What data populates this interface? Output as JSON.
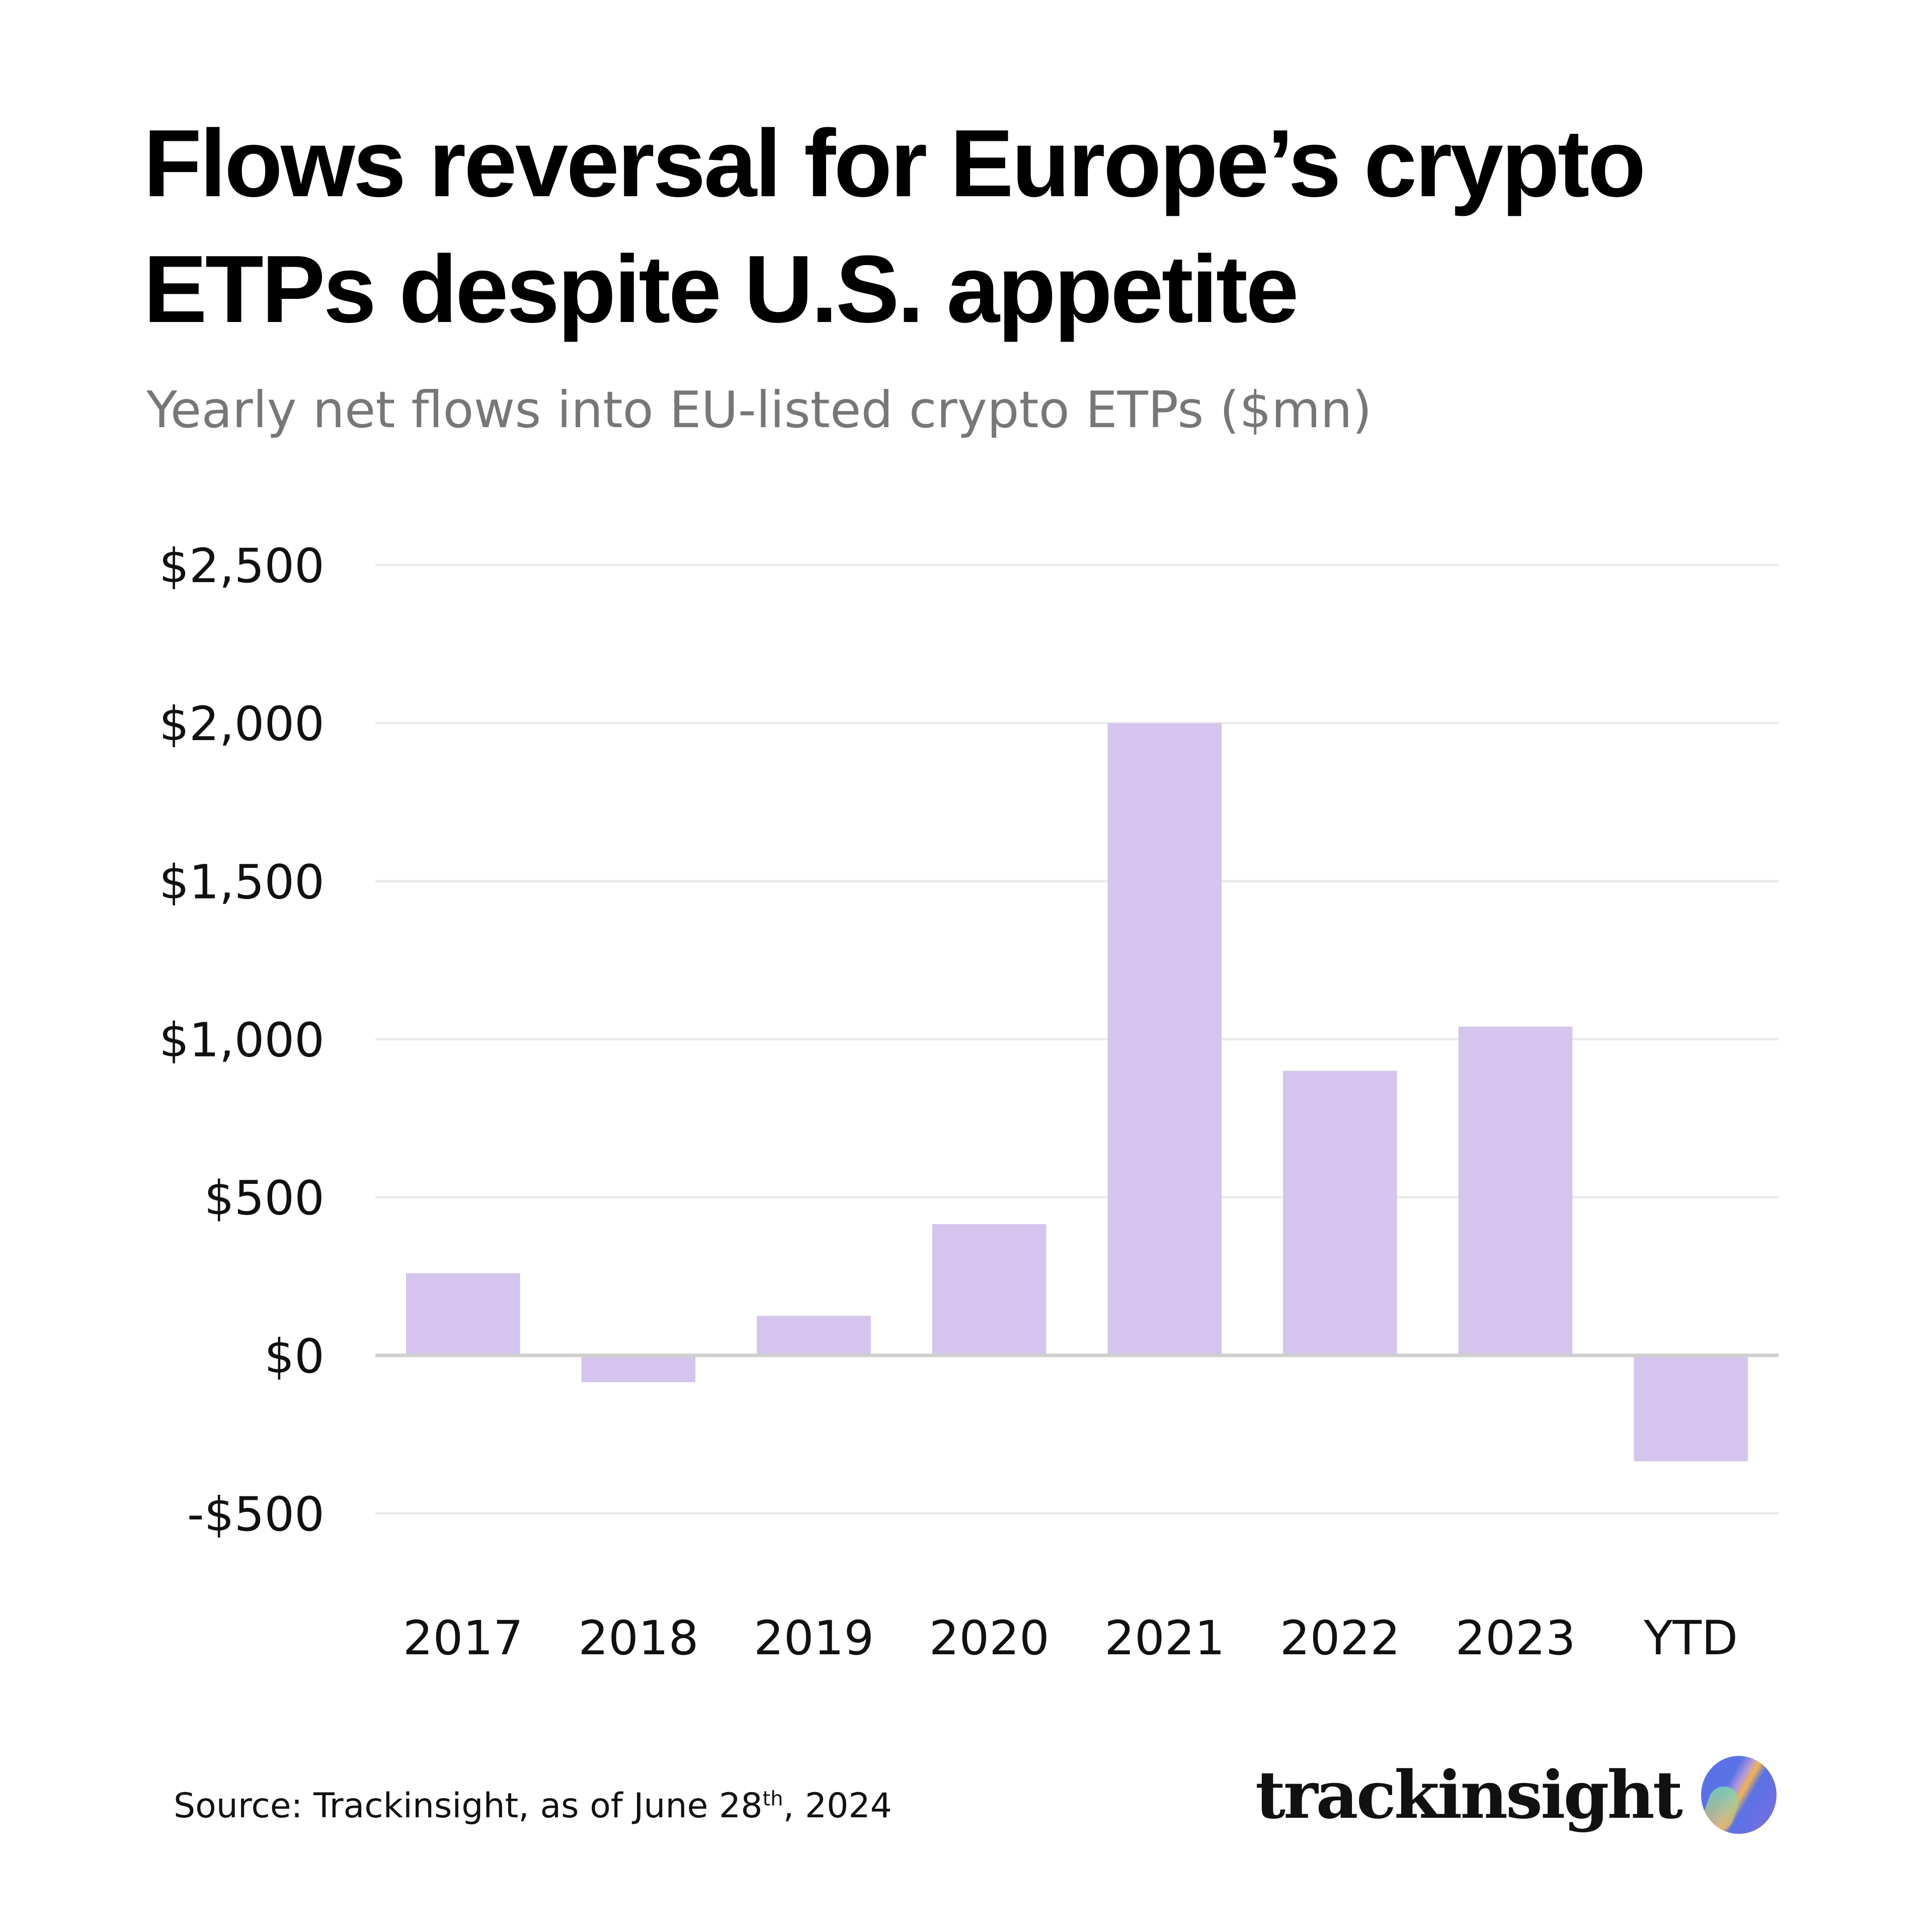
{
  "title": "Flows reversal for Europe’s crypto ETPs despite U.S. appetite",
  "subtitle": "Yearly net flows into EU-listed crypto ETPs ($mn)",
  "source": {
    "prefix": "Source: Trackinsight, as of June 28",
    "sup": "th",
    "suffix": ", 2024"
  },
  "logo": {
    "text": "trackinsight"
  },
  "colors": {
    "bar": "#d5c4ed",
    "grid": "#ececec",
    "zero_line": "#cfcfcf"
  },
  "chart_data": {
    "type": "bar",
    "title": "Flows reversal for Europe’s crypto ETPs despite U.S. appetite",
    "subtitle": "Yearly net flows into EU-listed crypto ETPs ($mn)",
    "categories": [
      "2017",
      "2018",
      "2019",
      "2020",
      "2021",
      "2022",
      "2023",
      "YTD"
    ],
    "values": [
      260,
      -85,
      125,
      415,
      2000,
      900,
      1040,
      -335
    ],
    "ylim": [
      -500,
      2500
    ],
    "yticks": [
      2500,
      2000,
      1500,
      1000,
      500,
      0,
      -500
    ],
    "ytick_labels": [
      "$2,500",
      "$2,000",
      "$1,500",
      "$1,000",
      "$500",
      "$0",
      "-$500"
    ],
    "grid": true,
    "legend": "none"
  }
}
